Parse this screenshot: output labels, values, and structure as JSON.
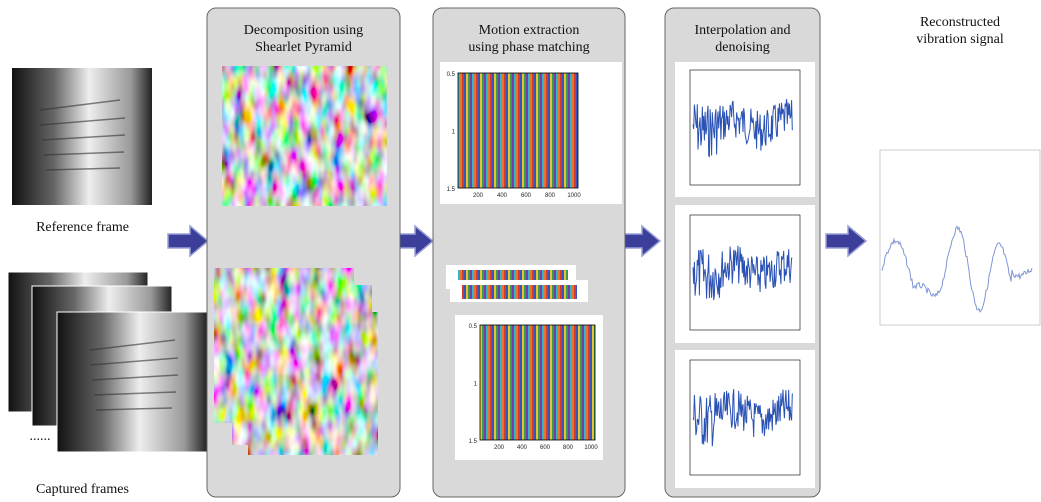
{
  "input": {
    "reference_label": "Reference frame",
    "captured_label": "Captured frames",
    "ellipsis": "......"
  },
  "steps": [
    {
      "title": "Decomposition using\nShearlet Pyramid"
    },
    {
      "title": "Motion extraction\nusing phase matching"
    },
    {
      "title": "Interpolation and\ndenoising"
    }
  ],
  "phase_plot": {
    "y_labels": [
      "0.5",
      "1",
      "1.5"
    ],
    "x_labels": [
      "200",
      "400",
      "600",
      "800",
      "1000"
    ]
  },
  "output": {
    "title": "Reconstructed\nvibration signal"
  }
}
